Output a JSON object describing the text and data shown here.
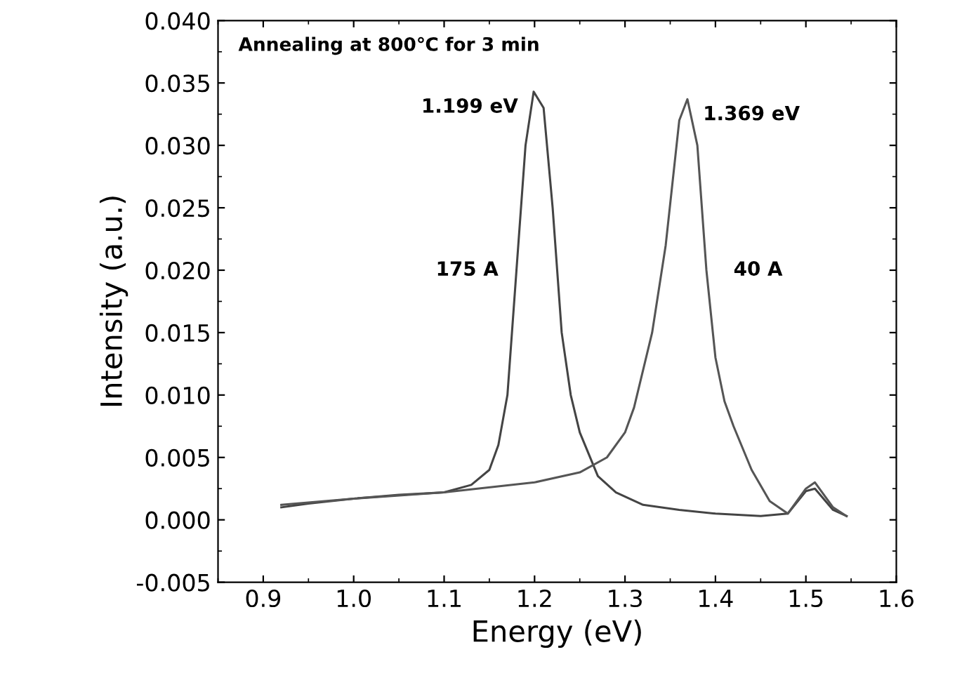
{
  "chart_data": {
    "type": "line",
    "xlabel": "Energy (eV)",
    "ylabel": "Intensity (a.u.)",
    "xlim": [
      0.85,
      1.6
    ],
    "ylim": [
      -0.005,
      0.04
    ],
    "xticks": [
      {
        "value": 0.9,
        "label": "0.9"
      },
      {
        "value": 1.0,
        "label": "1.0"
      },
      {
        "value": 1.1,
        "label": "1.1"
      },
      {
        "value": 1.2,
        "label": "1.2"
      },
      {
        "value": 1.3,
        "label": "1.3"
      },
      {
        "value": 1.4,
        "label": "1.4"
      },
      {
        "value": 1.5,
        "label": "1.5"
      },
      {
        "value": 1.6,
        "label": "1.6"
      }
    ],
    "yticks": [
      {
        "value": -0.005,
        "label": "-0.005"
      },
      {
        "value": 0,
        "label": "0.000"
      },
      {
        "value": 0.005,
        "label": "0.005"
      },
      {
        "value": 0.01,
        "label": "0.010"
      },
      {
        "value": 0.015,
        "label": "0.015"
      },
      {
        "value": 0.02,
        "label": "0.020"
      },
      {
        "value": 0.025,
        "label": "0.025"
      },
      {
        "value": 0.03,
        "label": "0.030"
      },
      {
        "value": 0.035,
        "label": "0.035"
      },
      {
        "value": 0.04,
        "label": "0.040"
      }
    ],
    "grid": false,
    "legend": false,
    "marker": "none",
    "line_style": "solid",
    "series": [
      {
        "name": "175 A",
        "color": "#444444",
        "x": [
          0.92,
          0.95,
          1.0,
          1.05,
          1.1,
          1.13,
          1.15,
          1.16,
          1.17,
          1.18,
          1.19,
          1.199,
          1.21,
          1.22,
          1.23,
          1.24,
          1.25,
          1.27,
          1.29,
          1.32,
          1.36,
          1.4,
          1.45,
          1.48,
          1.5,
          1.51,
          1.53,
          1.545
        ],
        "values": [
          0.001,
          0.0013,
          0.0017,
          0.002,
          0.0022,
          0.0028,
          0.004,
          0.006,
          0.01,
          0.02,
          0.03,
          0.0343,
          0.033,
          0.025,
          0.015,
          0.01,
          0.007,
          0.0035,
          0.0022,
          0.0012,
          0.0008,
          0.0005,
          0.0003,
          0.0005,
          0.0023,
          0.0025,
          0.0008,
          0.0003
        ]
      },
      {
        "name": "40 A",
        "color": "#555555",
        "x": [
          0.92,
          1.0,
          1.1,
          1.2,
          1.25,
          1.28,
          1.3,
          1.31,
          1.33,
          1.345,
          1.36,
          1.369,
          1.38,
          1.39,
          1.4,
          1.41,
          1.42,
          1.44,
          1.46,
          1.48,
          1.5,
          1.51,
          1.53,
          1.545
        ],
        "values": [
          0.0012,
          0.0017,
          0.0022,
          0.003,
          0.0038,
          0.005,
          0.007,
          0.009,
          0.015,
          0.022,
          0.032,
          0.0337,
          0.03,
          0.02,
          0.013,
          0.0095,
          0.0075,
          0.004,
          0.0015,
          0.0005,
          0.0025,
          0.003,
          0.001,
          0.0003
        ]
      }
    ],
    "annotations": [
      "Annealing at 800℃ for 3 min",
      {
        "text": "1.199 eV",
        "x": 1.199,
        "y": 0.0343
      },
      {
        "text": "1.369 eV",
        "x": 1.369,
        "y": 0.0337
      }
    ]
  }
}
